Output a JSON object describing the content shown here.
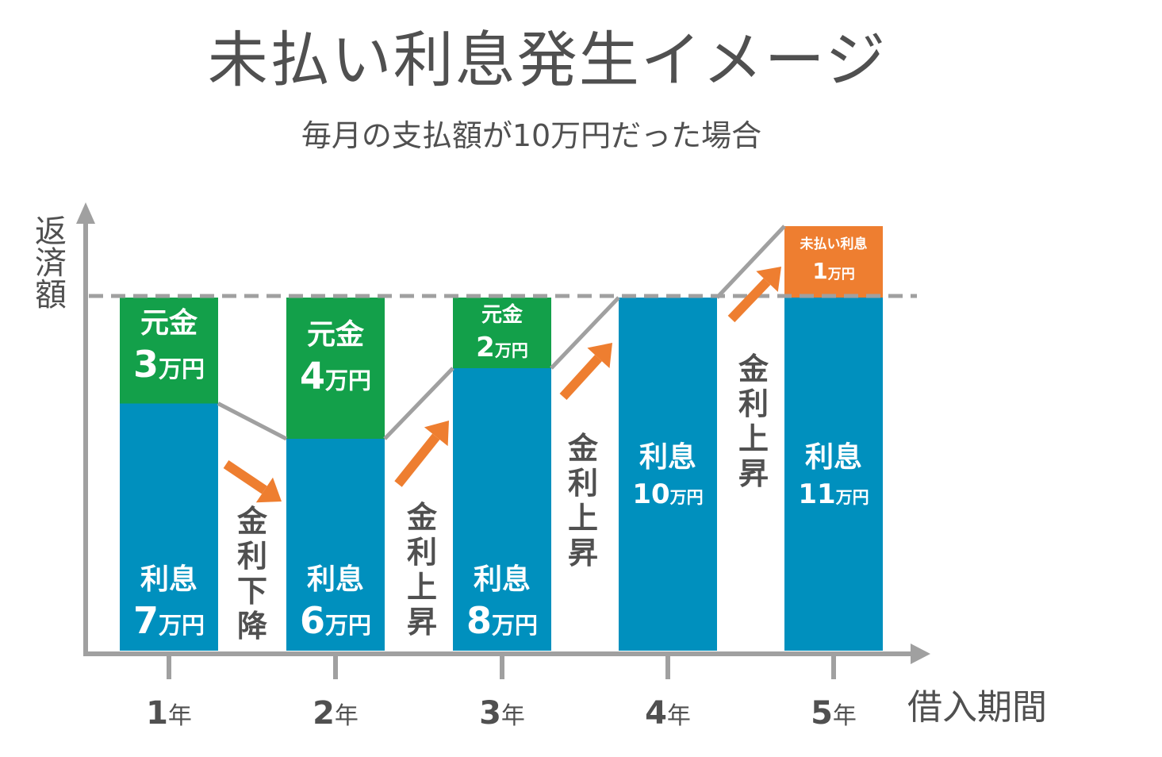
{
  "title": "未払い利息発生イメージ",
  "subtitle": "毎月の支払額が10万円だった場合",
  "colors": {
    "interest": "#0090BE",
    "principal": "#13A04A",
    "unpaid": "#EE7E30",
    "axis": "#A0A0A0",
    "text": "#505050"
  },
  "chart_data": {
    "type": "bar",
    "title": "未払い利息発生イメージ",
    "subtitle": "毎月の支払額が10万円だった場合",
    "ylabel": "返済額",
    "xlabel": "借入期間",
    "unit": "万円",
    "monthly_payment": 10,
    "categories": [
      "1年",
      "2年",
      "3年",
      "4年",
      "5年"
    ],
    "ylim": [
      0,
      11
    ],
    "series": [
      {
        "key": "interest",
        "values": [
          7,
          6,
          8,
          10,
          11
        ],
        "labels": [
          "利息",
          "利息",
          "利息",
          "利息",
          "利息"
        ]
      },
      {
        "key": "principal",
        "values": [
          3,
          4,
          2,
          0,
          0
        ],
        "labels": [
          "元金",
          "元金",
          "元金",
          "",
          ""
        ]
      },
      {
        "key": "unpaid",
        "values": [
          0,
          0,
          0,
          0,
          1
        ],
        "labels": [
          "",
          "",
          "",
          "",
          "未払い利息"
        ]
      }
    ],
    "annotations": [
      "金利下降",
      "金利上昇",
      "金利上昇",
      "金利上昇"
    ],
    "arrow_directions": [
      "down",
      "up",
      "up",
      "up"
    ]
  }
}
